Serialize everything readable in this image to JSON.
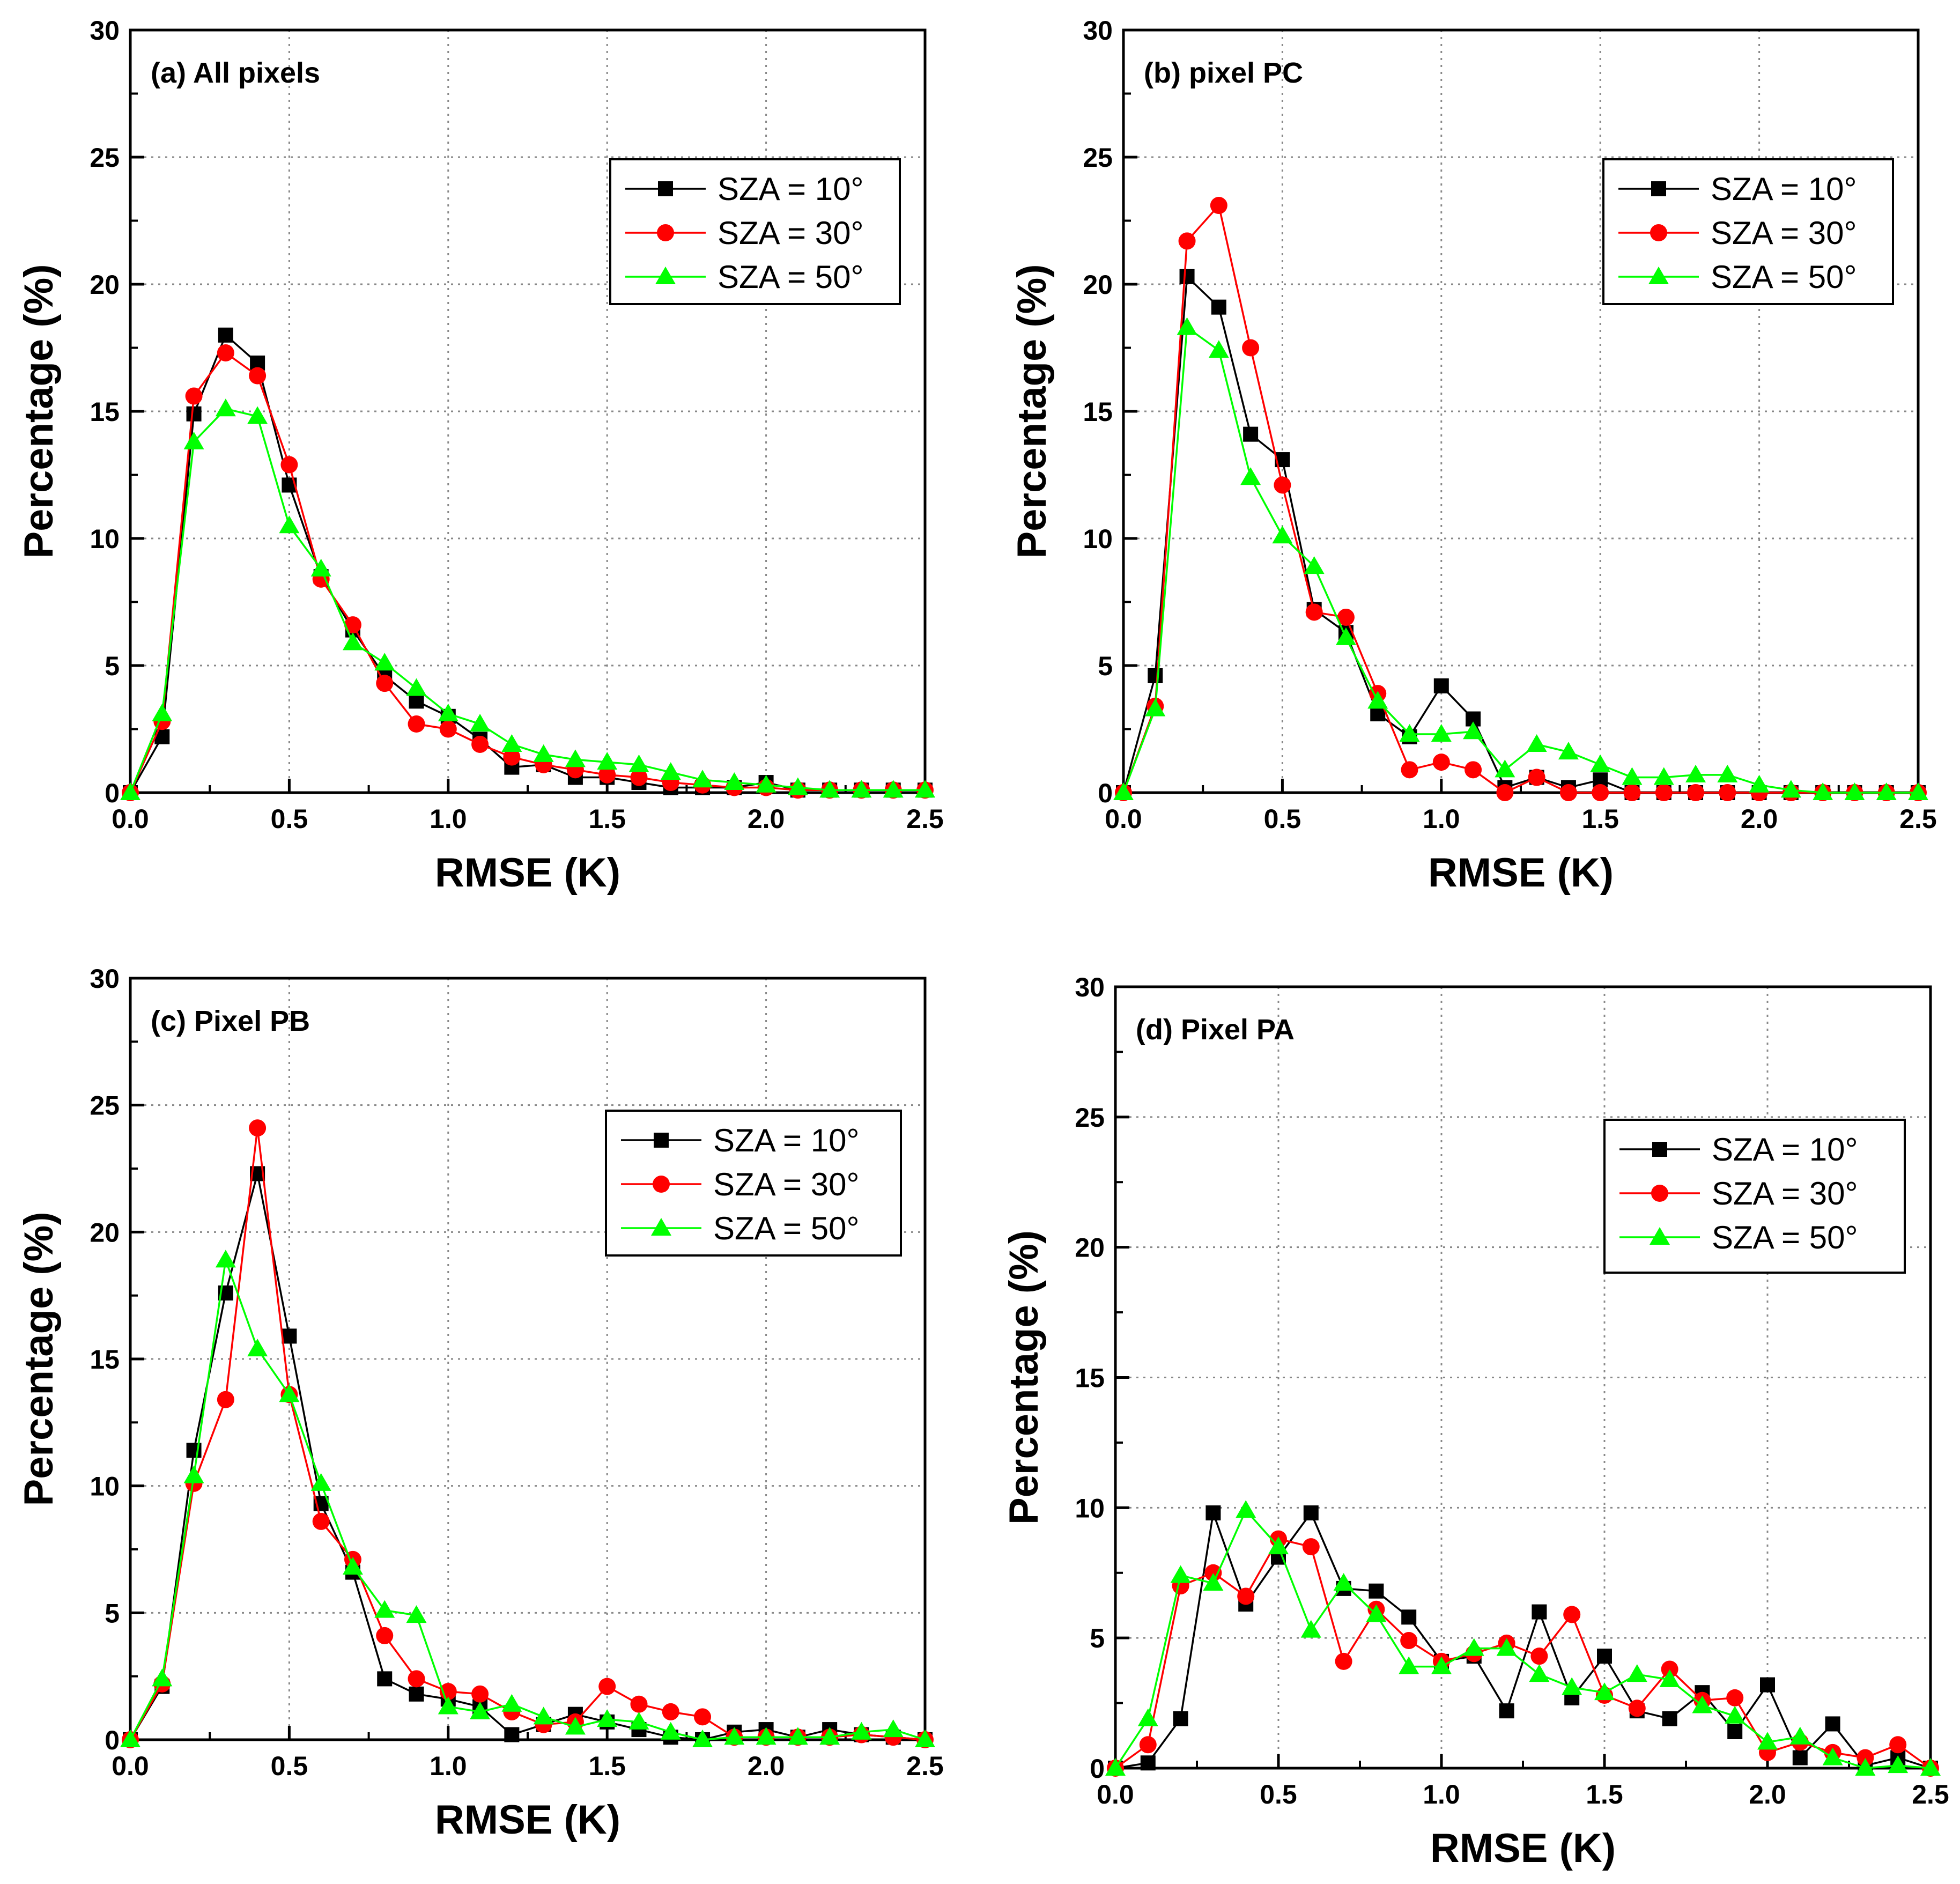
{
  "chart_data": [
    {
      "type": "line",
      "title": "(a) All pixels",
      "xlabel": "RMSE (K)",
      "ylabel": "Percentage (%)",
      "xlim": [
        0,
        2.5
      ],
      "ylim": [
        0,
        30
      ],
      "xticks": [
        "0.0",
        "0.5",
        "1.0",
        "1.5",
        "2.0",
        "2.5"
      ],
      "yticks": [
        "0",
        "5",
        "10",
        "15",
        "20",
        "25",
        "30"
      ],
      "grid": true,
      "legend_position": "top-right",
      "x": [
        0.0,
        0.1,
        0.2,
        0.3,
        0.4,
        0.5,
        0.6,
        0.7,
        0.8,
        0.9,
        1.0,
        1.1,
        1.2,
        1.3,
        1.4,
        1.5,
        1.6,
        1.7,
        1.8,
        1.9,
        2.0,
        2.1,
        2.2,
        2.3,
        2.4,
        2.5
      ],
      "series": [
        {
          "name": "SZA = 10°",
          "color": "#000000",
          "marker": "square",
          "values": [
            0.0,
            2.2,
            14.9,
            18.0,
            16.9,
            12.1,
            8.5,
            6.4,
            4.6,
            3.6,
            3.0,
            2.1,
            1.0,
            1.1,
            0.6,
            0.6,
            0.4,
            0.2,
            0.2,
            0.2,
            0.4,
            0.1,
            0.1,
            0.1,
            0.1,
            0.1
          ]
        },
        {
          "name": "SZA = 30°",
          "color": "#ff0000",
          "marker": "circle",
          "values": [
            0.0,
            2.8,
            15.6,
            17.3,
            16.4,
            12.9,
            8.4,
            6.6,
            4.3,
            2.7,
            2.5,
            1.9,
            1.4,
            1.1,
            0.9,
            0.7,
            0.6,
            0.4,
            0.3,
            0.2,
            0.2,
            0.1,
            0.1,
            0.1,
            0.1,
            0.1
          ]
        },
        {
          "name": "SZA = 50°",
          "color": "#00ff00",
          "marker": "triangle",
          "values": [
            0.0,
            3.1,
            13.8,
            15.1,
            14.8,
            10.5,
            8.8,
            5.9,
            5.1,
            4.1,
            3.1,
            2.7,
            1.9,
            1.5,
            1.3,
            1.2,
            1.1,
            0.8,
            0.5,
            0.4,
            0.3,
            0.2,
            0.1,
            0.1,
            0.1,
            0.1
          ]
        }
      ]
    },
    {
      "type": "line",
      "title": "(b) pixel PC",
      "xlabel": "RMSE (K)",
      "ylabel": "Percentage (%)",
      "xlim": [
        0,
        2.5
      ],
      "ylim": [
        0,
        30
      ],
      "xticks": [
        "0.0",
        "0.5",
        "1.0",
        "1.5",
        "2.0",
        "2.5"
      ],
      "yticks": [
        "0",
        "5",
        "10",
        "15",
        "20",
        "25",
        "30"
      ],
      "grid": true,
      "legend_position": "top-right",
      "x": [
        0.0,
        0.1,
        0.2,
        0.3,
        0.4,
        0.5,
        0.6,
        0.7,
        0.8,
        0.9,
        1.0,
        1.1,
        1.2,
        1.3,
        1.4,
        1.5,
        1.6,
        1.7,
        1.8,
        1.9,
        2.0,
        2.1,
        2.2,
        2.3,
        2.4,
        2.5
      ],
      "series": [
        {
          "name": "SZA = 10°",
          "color": "#000000",
          "marker": "square",
          "values": [
            0.0,
            4.6,
            20.3,
            19.1,
            14.1,
            13.1,
            7.2,
            6.3,
            3.1,
            2.2,
            4.2,
            2.9,
            0.2,
            0.6,
            0.2,
            0.5,
            0.0,
            0.0,
            0.0,
            0.0,
            0.0,
            0.0,
            0.0,
            0.0,
            0.0,
            0.0
          ]
        },
        {
          "name": "SZA = 30°",
          "color": "#ff0000",
          "marker": "circle",
          "values": [
            0.0,
            3.4,
            21.7,
            23.1,
            17.5,
            12.1,
            7.1,
            6.9,
            3.9,
            0.9,
            1.2,
            0.9,
            0.0,
            0.6,
            0.0,
            0.0,
            0.0,
            0.0,
            0.0,
            0.0,
            0.0,
            0.0,
            0.0,
            0.0,
            0.0,
            0.0
          ]
        },
        {
          "name": "SZA = 50°",
          "color": "#00ff00",
          "marker": "triangle",
          "values": [
            0.0,
            3.3,
            18.3,
            17.4,
            12.4,
            10.1,
            8.9,
            6.1,
            3.6,
            2.3,
            2.3,
            2.4,
            0.9,
            1.9,
            1.6,
            1.1,
            0.6,
            0.6,
            0.7,
            0.7,
            0.3,
            0.1,
            0.0,
            0.0,
            0.0,
            0.0
          ]
        }
      ]
    },
    {
      "type": "line",
      "title": "(c) Pixel PB",
      "xlabel": "RMSE (K)",
      "ylabel": "Percentage (%)",
      "xlim": [
        0,
        2.5
      ],
      "ylim": [
        0,
        30
      ],
      "xticks": [
        "0.0",
        "0.5",
        "1.0",
        "1.5",
        "2.0",
        "2.5"
      ],
      "yticks": [
        "0",
        "5",
        "10",
        "15",
        "20",
        "25",
        "30"
      ],
      "grid": true,
      "legend_position": "top-right",
      "x": [
        0.0,
        0.1,
        0.2,
        0.3,
        0.4,
        0.5,
        0.6,
        0.7,
        0.8,
        0.9,
        1.0,
        1.1,
        1.2,
        1.3,
        1.4,
        1.5,
        1.6,
        1.7,
        1.8,
        1.9,
        2.0,
        2.1,
        2.2,
        2.3,
        2.4,
        2.5
      ],
      "series": [
        {
          "name": "SZA = 10°",
          "color": "#000000",
          "marker": "square",
          "values": [
            0.0,
            2.1,
            11.4,
            17.6,
            22.3,
            15.9,
            9.3,
            6.6,
            2.4,
            1.8,
            1.6,
            1.3,
            0.2,
            0.6,
            1.0,
            0.7,
            0.4,
            0.1,
            0.0,
            0.3,
            0.4,
            0.1,
            0.4,
            0.2,
            0.1,
            0.0
          ]
        },
        {
          "name": "SZA = 30°",
          "color": "#ff0000",
          "marker": "circle",
          "values": [
            0.0,
            2.2,
            10.1,
            13.4,
            24.1,
            13.6,
            8.6,
            7.1,
            4.1,
            2.4,
            1.9,
            1.8,
            1.1,
            0.6,
            0.7,
            2.1,
            1.4,
            1.1,
            0.9,
            0.1,
            0.1,
            0.1,
            0.1,
            0.2,
            0.1,
            0.0
          ]
        },
        {
          "name": "SZA = 50°",
          "color": "#00ff00",
          "marker": "triangle",
          "values": [
            0.0,
            2.4,
            10.4,
            18.9,
            15.4,
            13.6,
            10.1,
            6.8,
            5.1,
            4.9,
            1.3,
            1.1,
            1.4,
            0.9,
            0.5,
            0.8,
            0.7,
            0.3,
            0.0,
            0.1,
            0.1,
            0.1,
            0.1,
            0.3,
            0.4,
            0.0
          ]
        }
      ]
    },
    {
      "type": "line",
      "title": "(d) Pixel PA",
      "xlabel": "RMSE (K)",
      "ylabel": "Percentage (%)",
      "xlim": [
        0,
        2.5
      ],
      "ylim": [
        0,
        30
      ],
      "xticks": [
        "0.0",
        "0.5",
        "1.0",
        "1.5",
        "2.0",
        "2.5"
      ],
      "yticks": [
        "0",
        "5",
        "10",
        "15",
        "20",
        "25",
        "30"
      ],
      "grid": true,
      "legend_position": "top-right",
      "x": [
        0.0,
        0.1,
        0.2,
        0.3,
        0.4,
        0.5,
        0.6,
        0.7,
        0.8,
        0.9,
        1.0,
        1.1,
        1.2,
        1.3,
        1.4,
        1.5,
        1.6,
        1.7,
        1.8,
        1.9,
        2.0,
        2.1,
        2.2,
        2.3,
        2.4,
        2.5
      ],
      "series": [
        {
          "name": "SZA = 10°",
          "color": "#000000",
          "marker": "square",
          "values": [
            0.0,
            0.2,
            1.9,
            9.8,
            6.3,
            8.1,
            9.8,
            6.9,
            6.8,
            5.8,
            4.1,
            4.3,
            2.2,
            6.0,
            2.7,
            4.3,
            2.2,
            1.9,
            2.9,
            1.4,
            3.2,
            0.4,
            1.7,
            0.1,
            0.4,
            0.0
          ]
        },
        {
          "name": "SZA = 30°",
          "color": "#ff0000",
          "marker": "circle",
          "values": [
            0.0,
            0.9,
            7.0,
            7.5,
            6.6,
            8.8,
            8.5,
            4.1,
            6.1,
            4.9,
            4.1,
            4.4,
            4.8,
            4.3,
            5.9,
            2.8,
            2.3,
            3.8,
            2.6,
            2.7,
            0.6,
            1.0,
            0.6,
            0.4,
            0.9,
            0.0
          ]
        },
        {
          "name": "SZA = 50°",
          "color": "#00ff00",
          "marker": "triangle",
          "values": [
            0.0,
            1.9,
            7.4,
            7.1,
            9.9,
            8.5,
            5.3,
            7.1,
            5.9,
            3.9,
            3.9,
            4.6,
            4.6,
            3.6,
            3.1,
            2.9,
            3.6,
            3.4,
            2.4,
            2.0,
            1.0,
            1.2,
            0.4,
            0.0,
            0.1,
            0.0
          ]
        }
      ]
    }
  ]
}
